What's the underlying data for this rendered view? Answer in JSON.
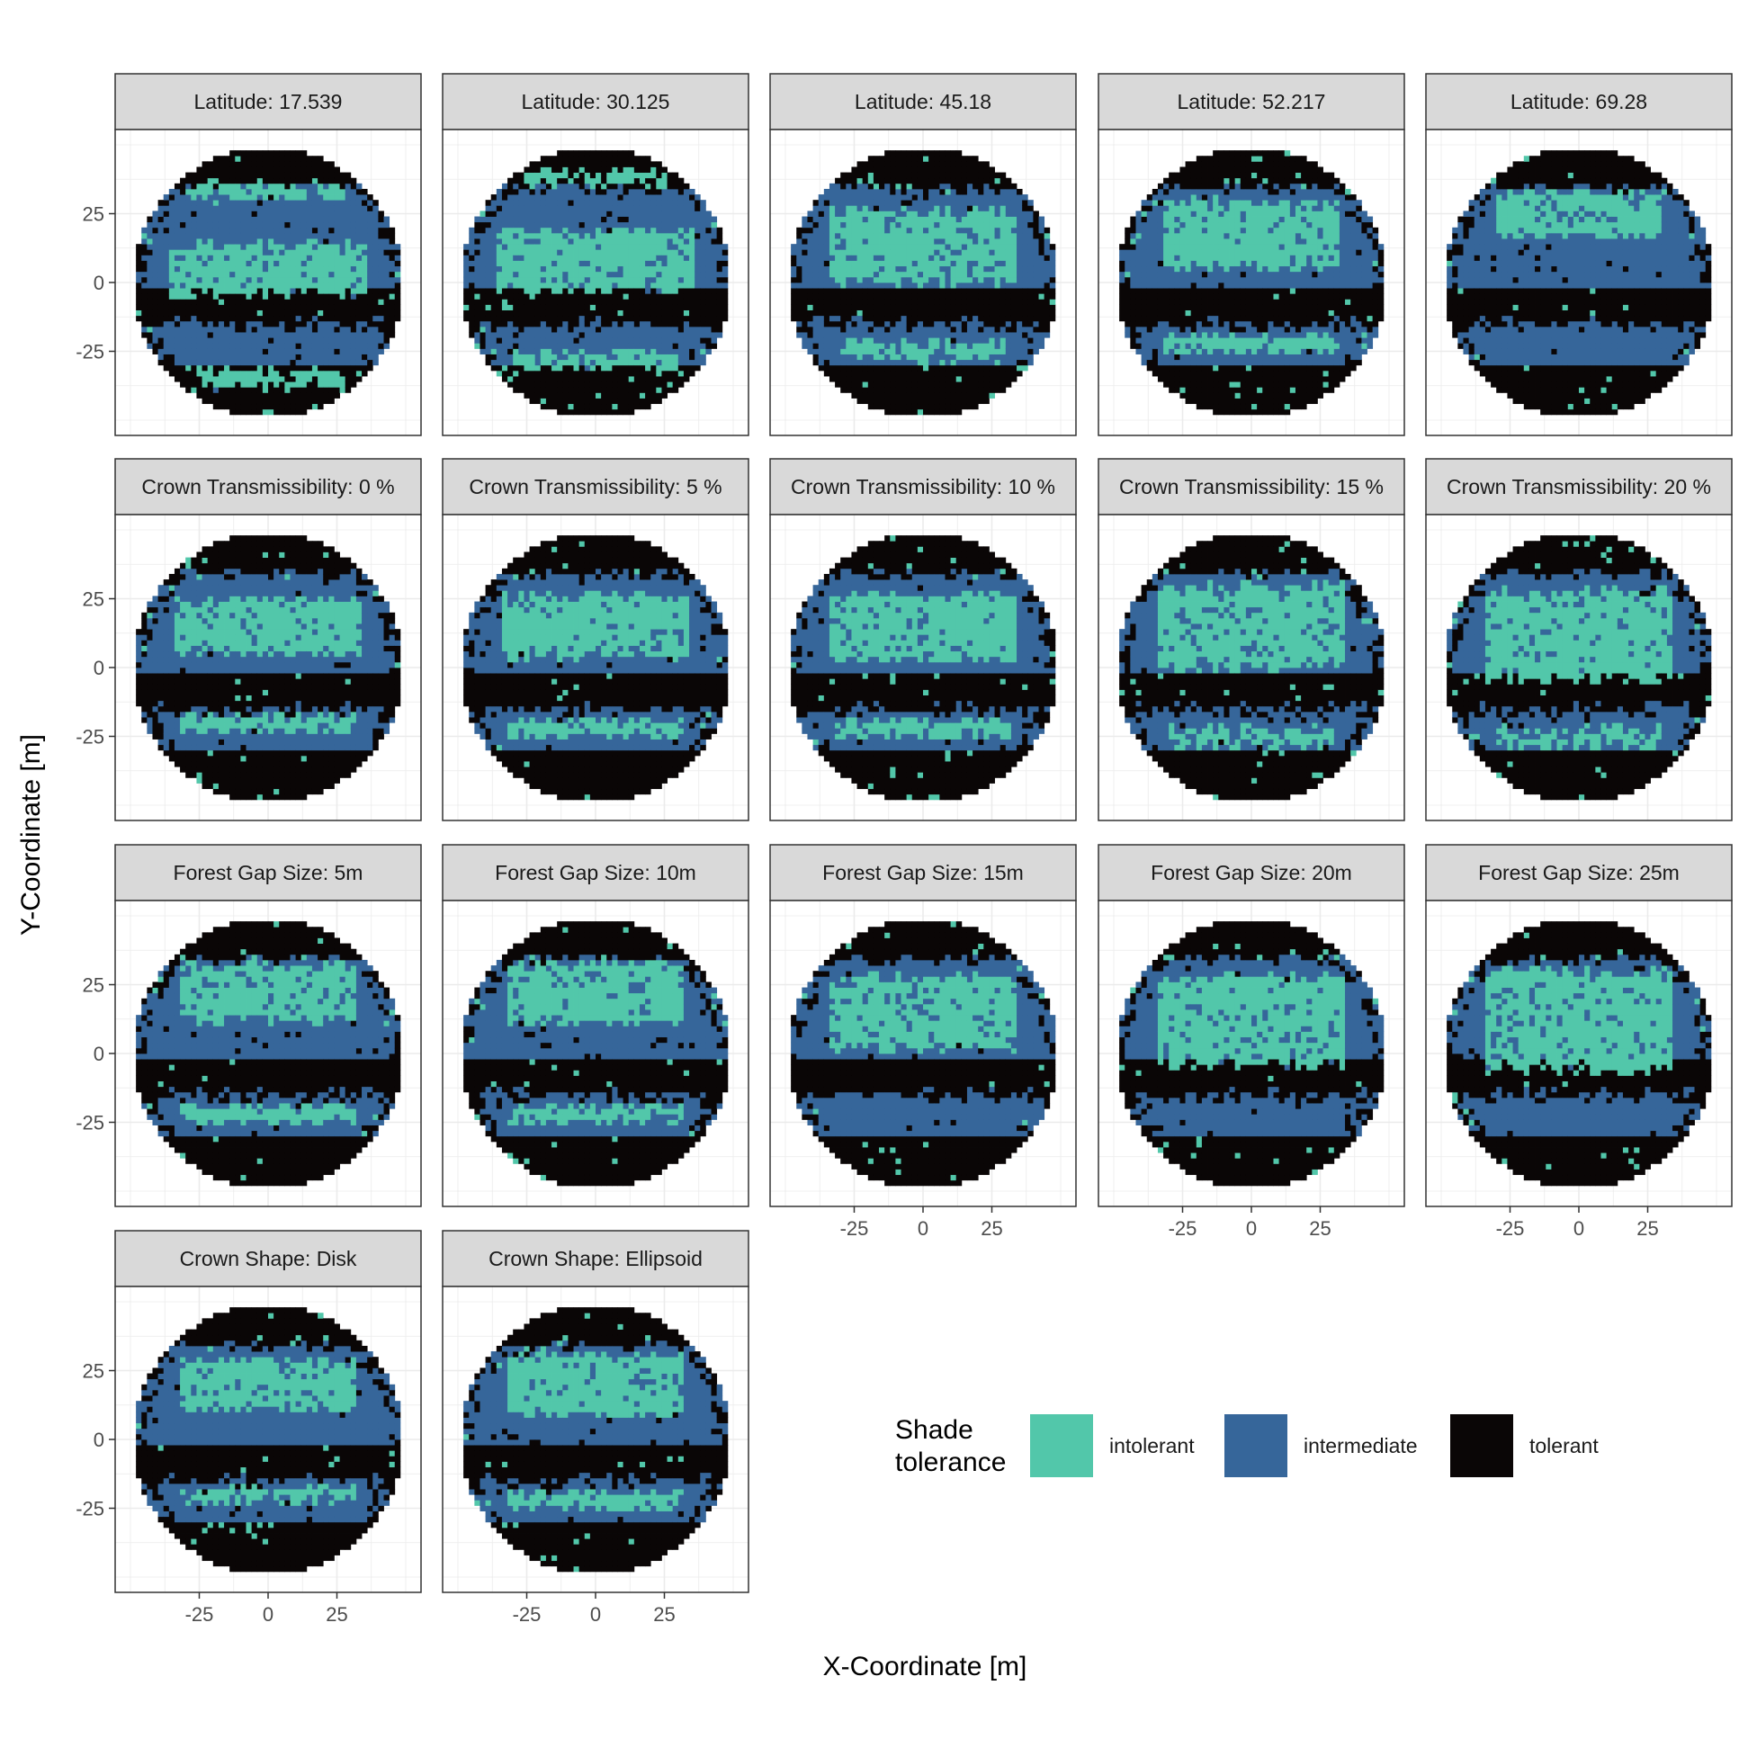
{
  "chart_data": {
    "type": "heatmap",
    "layout": "faceted grid, 5 columns x 4 rows",
    "xlabel": "X-Coordinate [m]",
    "ylabel": "Y-Coordinate [m]",
    "xlim": [
      -50,
      50
    ],
    "ylim": [
      -50,
      50
    ],
    "x_ticks": [
      -25,
      0,
      25
    ],
    "y_ticks": [
      25,
      0,
      -25
    ],
    "x_tick_labels": [
      "-25",
      "0",
      "25"
    ],
    "y_tick_labels": [
      "25",
      "0",
      "-25"
    ],
    "grid": true,
    "legend": {
      "title_lines": [
        "Shade",
        "tolerance"
      ],
      "placement": "bottom-right",
      "entries": [
        {
          "label": "intolerant",
          "color": "#52C7AA"
        },
        {
          "label": "intermediate",
          "color": "#36669A"
        },
        {
          "label": "tolerant",
          "color": "#0A0606"
        }
      ]
    },
    "panels": [
      {
        "title": "Latitude: 17.539",
        "bands": [
          {
            "y": 33,
            "w": 2.5,
            "c": 0
          },
          {
            "y": 5,
            "w": 9,
            "c": 0
          },
          {
            "y": -35,
            "w": 3,
            "c": 0
          }
        ]
      },
      {
        "title": "Latitude: 30.125",
        "bands": [
          {
            "y": 38,
            "w": 2.5,
            "c": 0
          },
          {
            "y": 8,
            "w": 11,
            "c": 0
          },
          {
            "y": -28,
            "w": 3,
            "c": 0
          }
        ]
      },
      {
        "title": "Latitude: 45.18",
        "bands": [
          {
            "y": 13,
            "w": 13,
            "c": 0
          },
          {
            "y": -25,
            "w": 3,
            "c": 0
          }
        ]
      },
      {
        "title": "Latitude: 52.217",
        "bands": [
          {
            "y": 18,
            "w": 12,
            "c": 0
          },
          {
            "y": -22,
            "w": 3,
            "c": 0
          }
        ]
      },
      {
        "title": "Latitude: 69.28",
        "bands": [
          {
            "y": 25,
            "w": 8,
            "c": 0
          }
        ]
      },
      {
        "title": "Crown Transmissibility: 0 %",
        "bands": [
          {
            "y": 15,
            "w": 10,
            "c": 0
          },
          {
            "y": -20,
            "w": 3,
            "c": 0
          }
        ]
      },
      {
        "title": "Crown Transmissibility: 5 %",
        "bands": [
          {
            "y": 15,
            "w": 11,
            "c": 0
          },
          {
            "y": -22,
            "w": 3,
            "c": 0
          }
        ]
      },
      {
        "title": "Crown Transmissibility: 10 %",
        "bands": [
          {
            "y": 15,
            "w": 12,
            "c": 0
          },
          {
            "y": -22,
            "w": 3,
            "c": 0
          }
        ]
      },
      {
        "title": "Crown Transmissibility: 15 %",
        "bands": [
          {
            "y": 15,
            "w": 15,
            "c": 0
          },
          {
            "y": -25,
            "w": 3,
            "c": 0
          }
        ]
      },
      {
        "title": "Crown Transmissibility: 20 %",
        "bands": [
          {
            "y": 12,
            "w": 16,
            "c": 0
          },
          {
            "y": -25,
            "w": 3,
            "c": 0
          }
        ]
      },
      {
        "title": "Forest Gap Size: 5m",
        "bands": [
          {
            "y": 22,
            "w": 10,
            "c": 0
          },
          {
            "y": -22,
            "w": 3,
            "c": 0
          }
        ]
      },
      {
        "title": "Forest Gap Size: 10m",
        "bands": [
          {
            "y": 22,
            "w": 11,
            "c": 0
          },
          {
            "y": -22,
            "w": 3,
            "c": 0
          }
        ]
      },
      {
        "title": "Forest Gap Size: 15m",
        "bands": [
          {
            "y": 15,
            "w": 13,
            "c": 0
          }
        ]
      },
      {
        "title": "Forest Gap Size: 20m",
        "bands": [
          {
            "y": 12,
            "w": 16,
            "c": 0
          }
        ]
      },
      {
        "title": "Forest Gap Size: 25m",
        "bands": [
          {
            "y": 12,
            "w": 18,
            "c": 0
          }
        ]
      },
      {
        "title": "Crown Shape: Disk",
        "bands": [
          {
            "y": 20,
            "w": 9,
            "c": 0
          },
          {
            "y": -20,
            "w": 2.5,
            "c": 0
          }
        ]
      },
      {
        "title": "Crown Shape: Ellipsoid",
        "bands": [
          {
            "y": 20,
            "w": 11,
            "c": 0
          },
          {
            "y": -22,
            "w": 3,
            "c": 0
          }
        ]
      }
    ]
  }
}
